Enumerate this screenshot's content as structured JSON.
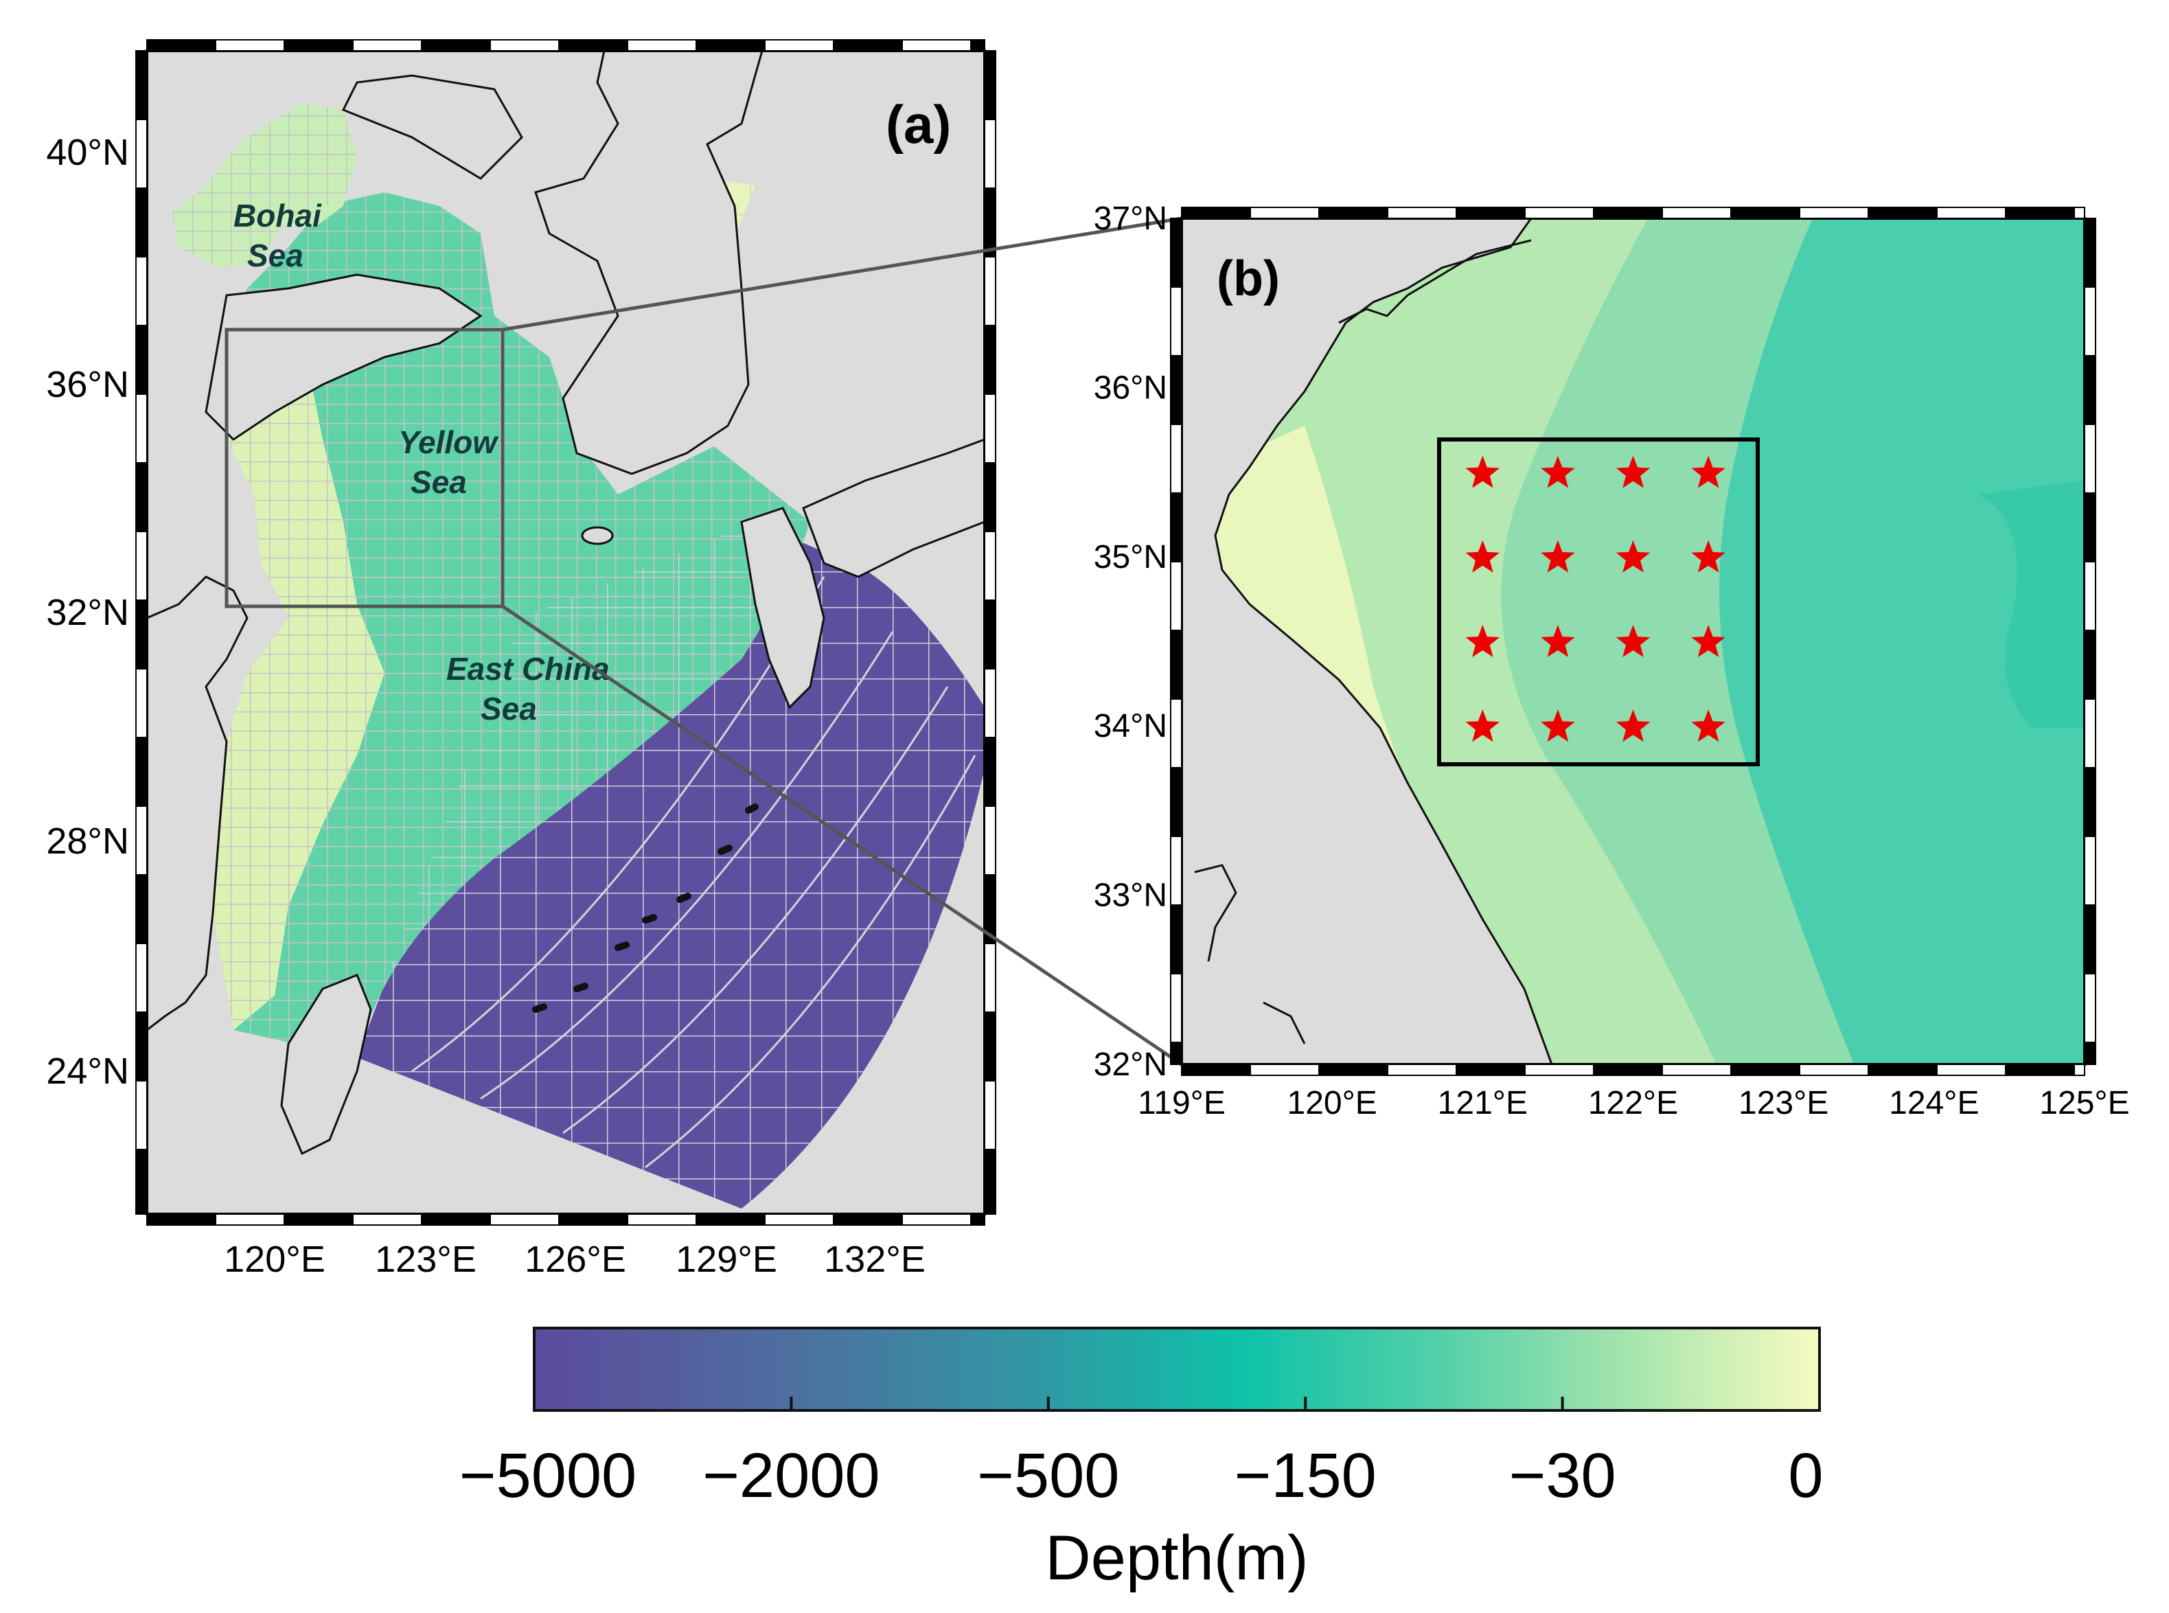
{
  "panel_a": {
    "label": "(a)",
    "lat_ticks": [
      "40°N",
      "36°N",
      "32°N",
      "28°N",
      "24°N"
    ],
    "lon_ticks": [
      "120°E",
      "123°E",
      "126°E",
      "129°E",
      "132°E"
    ],
    "sea_labels": {
      "bohai_1": "Bohai",
      "bohai_2": "Sea",
      "yellow_1": "Yellow",
      "yellow_2": "Sea",
      "ecs_1": "East China",
      "ecs_2": "Sea"
    }
  },
  "panel_b": {
    "label": "(b)",
    "lat_ticks": [
      "37°N",
      "36°N",
      "35°N",
      "34°N",
      "33°N",
      "32°N"
    ],
    "lon_ticks": [
      "119°E",
      "120°E",
      "121°E",
      "122°E",
      "123°E",
      "124°E",
      "125°E"
    ],
    "station_lons": [
      121,
      121.5,
      122,
      122.5
    ],
    "station_lats": [
      35.5,
      35,
      34.5,
      34
    ]
  },
  "colorbar": {
    "ticks": [
      "−5000",
      "−2000",
      "−500",
      "−150",
      "−30",
      "0"
    ],
    "label": "Depth(m)",
    "colors": [
      "#5c4a9c",
      "#4e6fa0",
      "#2f9aa4",
      "#0ec2a9",
      "#52cfa9",
      "#a5e4ad",
      "#f7fbc1"
    ]
  },
  "colors": {
    "land": "#dcdcdc",
    "station_marker": "#ee0000",
    "grid_line": "#c8c2c8",
    "frame": "#000000"
  }
}
